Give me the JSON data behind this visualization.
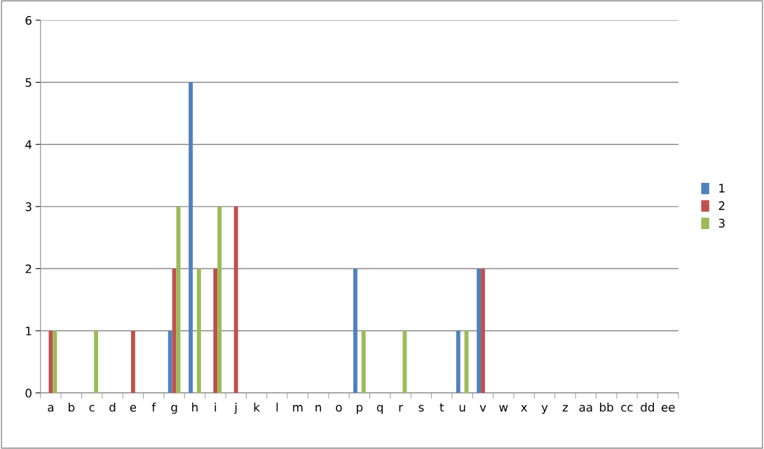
{
  "chart_data": {
    "type": "bar",
    "categories": [
      "a",
      "b",
      "c",
      "d",
      "e",
      "f",
      "g",
      "h",
      "i",
      "j",
      "k",
      "l",
      "m",
      "n",
      "o",
      "p",
      "q",
      "r",
      "s",
      "t",
      "u",
      "v",
      "w",
      "x",
      "y",
      "z",
      "aa",
      "bb",
      "cc",
      "dd",
      "ee"
    ],
    "series": [
      {
        "name": "1",
        "color": "#4f81bd",
        "values": [
          0,
          0,
          0,
          0,
          0,
          0,
          1,
          5,
          0,
          0,
          0,
          0,
          0,
          0,
          0,
          2,
          0,
          0,
          0,
          0,
          1,
          2,
          0,
          0,
          0,
          0,
          0,
          0,
          0,
          0,
          0
        ]
      },
      {
        "name": "2",
        "color": "#c0504d",
        "values": [
          1,
          0,
          0,
          0,
          1,
          0,
          2,
          0,
          2,
          3,
          0,
          0,
          0,
          0,
          0,
          0,
          0,
          0,
          0,
          0,
          0,
          2,
          0,
          0,
          0,
          0,
          0,
          0,
          0,
          0,
          0
        ]
      },
      {
        "name": "3",
        "color": "#9bbb59",
        "values": [
          1,
          0,
          1,
          0,
          0,
          0,
          3,
          2,
          3,
          0,
          0,
          0,
          0,
          0,
          0,
          1,
          0,
          1,
          0,
          0,
          1,
          0,
          0,
          0,
          0,
          0,
          0,
          0,
          0,
          0,
          0
        ]
      }
    ],
    "ylim": [
      0,
      6
    ],
    "yticks": [
      0,
      1,
      2,
      3,
      4,
      5,
      6
    ],
    "grid": "y",
    "legend": "right"
  }
}
